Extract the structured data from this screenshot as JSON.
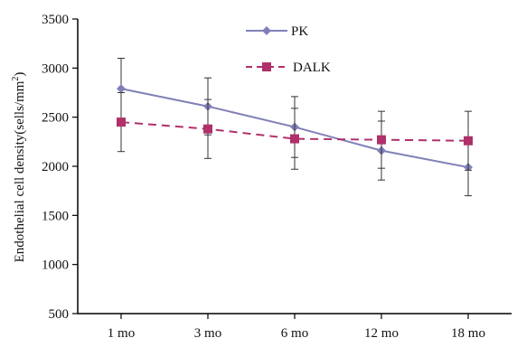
{
  "chart_data": {
    "type": "line",
    "categories": [
      "1 mo",
      "3 mo",
      "6 mo",
      "12 mo",
      "18 mo"
    ],
    "ylabel_main": "Endothelial cell density(sells/mm",
    "ylabel_sup": "2",
    "ylabel_end": ")",
    "ylim": [
      500,
      3500
    ],
    "yticks": [
      500,
      1000,
      1500,
      2000,
      2500,
      3000,
      3500
    ],
    "grid": false,
    "legend_position": "top-center",
    "series": [
      {
        "name": "PK",
        "color": "#8080b8",
        "line_style": "solid",
        "marker": "diamond",
        "values": [
          2790,
          2610,
          2400,
          2160,
          1990
        ],
        "error": [
          310,
          290,
          310,
          300,
          290
        ]
      },
      {
        "name": "DALK",
        "color": "#b0306a",
        "line_style": "dashed",
        "marker": "square",
        "values": [
          2450,
          2380,
          2280,
          2270,
          2260
        ],
        "error": [
          300,
          300,
          310,
          290,
          300
        ]
      }
    ]
  }
}
